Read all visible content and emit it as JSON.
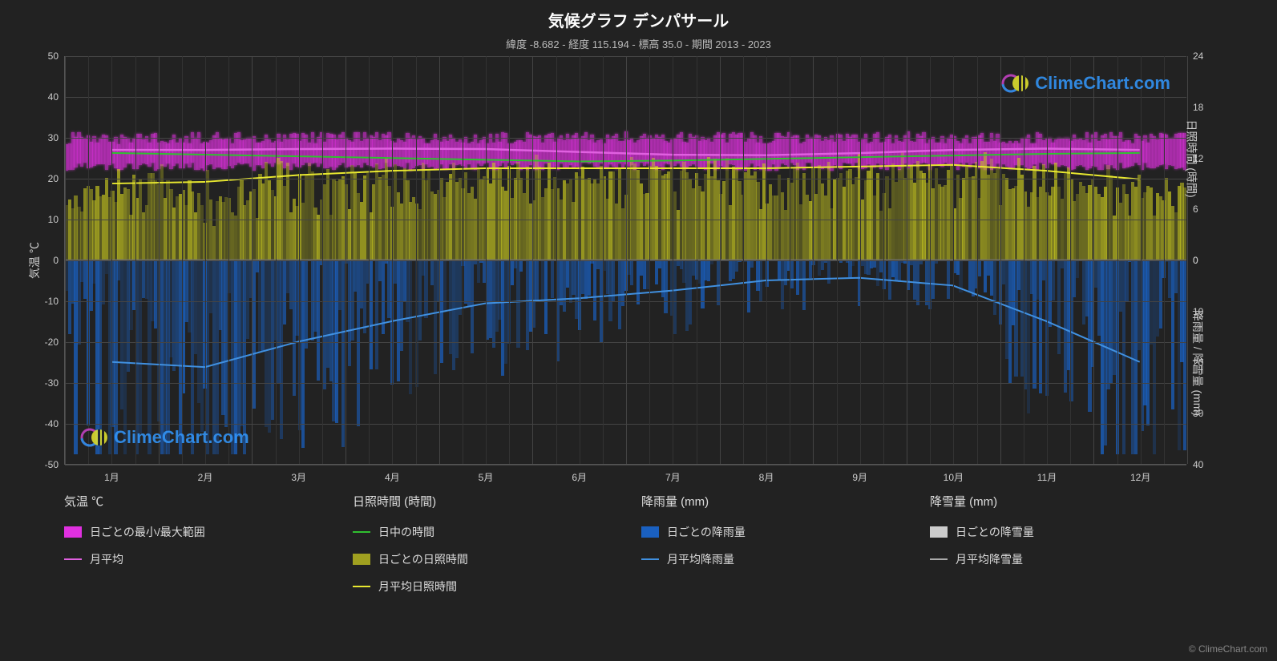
{
  "title": "気候グラフ デンパサール",
  "subtitle": "緯度 -8.682 - 経度 115.194 - 標高 35.0 - 期間 2013 - 2023",
  "watermark_text": "ClimeChart.com",
  "watermark_color": "#3399ff",
  "copyright": "© ClimeChart.com",
  "chart": {
    "background_color": "#222222",
    "grid_color": "#444444",
    "minor_grid_color": "#333333",
    "text_color": "#cccccc",
    "left_axis": {
      "label": "気温 ℃",
      "min": -50,
      "max": 50,
      "ticks": [
        -50,
        -40,
        -30,
        -20,
        -10,
        0,
        10,
        20,
        30,
        40,
        50
      ]
    },
    "right_axis_top": {
      "label": "日照時間 (時間)",
      "min": 0,
      "max": 24,
      "ticks": [
        0,
        6,
        12,
        18,
        24
      ]
    },
    "right_axis_bottom": {
      "label": "降雨量 / 降雪量 (mm)",
      "min": 0,
      "max": 40,
      "ticks": [
        0,
        10,
        20,
        30,
        40
      ]
    },
    "x_labels": [
      "1月",
      "2月",
      "3月",
      "4月",
      "5月",
      "6月",
      "7月",
      "8月",
      "9月",
      "10月",
      "11月",
      "12月"
    ],
    "temp_range_band": {
      "color": "#e030e0",
      "glow": "#ff40ff",
      "min_c": 23,
      "max_c": 30
    },
    "temp_monthly_avg": {
      "color": "#e060e0",
      "values": [
        27.0,
        27.0,
        27.2,
        27.3,
        27.2,
        26.5,
        25.8,
        25.7,
        26.2,
        27.0,
        27.3,
        27.0
      ]
    },
    "daylight_hours": {
      "color": "#30c030",
      "values": [
        12.6,
        12.4,
        12.2,
        12.0,
        11.8,
        11.6,
        11.7,
        11.9,
        12.1,
        12.3,
        12.5,
        12.6
      ]
    },
    "sunshine_band": {
      "color": "#c0c020",
      "top_c": 22,
      "bottom_c": 0
    },
    "sunshine_monthly_avg": {
      "color": "#e8e830",
      "values_hours": [
        9.0,
        9.2,
        10.0,
        10.5,
        10.8,
        10.8,
        10.8,
        10.8,
        11.0,
        11.2,
        10.5,
        9.5
      ]
    },
    "rain_band": {
      "color": "#1a60c0",
      "top_c": 0,
      "bottom_mm": 32
    },
    "rain_monthly_avg": {
      "color": "#4090e0",
      "values_mm": [
        20.0,
        21.0,
        16.0,
        12.0,
        8.5,
        7.5,
        6.0,
        4.0,
        3.5,
        5.0,
        12.0,
        20.0
      ]
    },
    "snow_monthly_avg": {
      "color": "#aaaaaa",
      "values_mm": [
        0,
        0,
        0,
        0,
        0,
        0,
        0,
        0,
        0,
        0,
        0,
        0
      ]
    }
  },
  "legend": {
    "col1_header": "気温 ℃",
    "col1_items": [
      {
        "type": "swatch",
        "color": "#e030e0",
        "label": "日ごとの最小/最大範囲"
      },
      {
        "type": "line",
        "color": "#e060e0",
        "label": "月平均"
      }
    ],
    "col2_header": "日照時間 (時間)",
    "col2_items": [
      {
        "type": "line",
        "color": "#30c030",
        "label": "日中の時間"
      },
      {
        "type": "swatch",
        "color": "#a0a020",
        "label": "日ごとの日照時間"
      },
      {
        "type": "line",
        "color": "#e8e830",
        "label": "月平均日照時間"
      }
    ],
    "col3_header": "降雨量 (mm)",
    "col3_items": [
      {
        "type": "swatch",
        "color": "#1a60c0",
        "label": "日ごとの降雨量"
      },
      {
        "type": "line",
        "color": "#4090e0",
        "label": "月平均降雨量"
      }
    ],
    "col4_header": "降雪量 (mm)",
    "col4_items": [
      {
        "type": "swatch",
        "color": "#cccccc",
        "label": "日ごとの降雪量"
      },
      {
        "type": "line",
        "color": "#aaaaaa",
        "label": "月平均降雪量"
      }
    ]
  }
}
